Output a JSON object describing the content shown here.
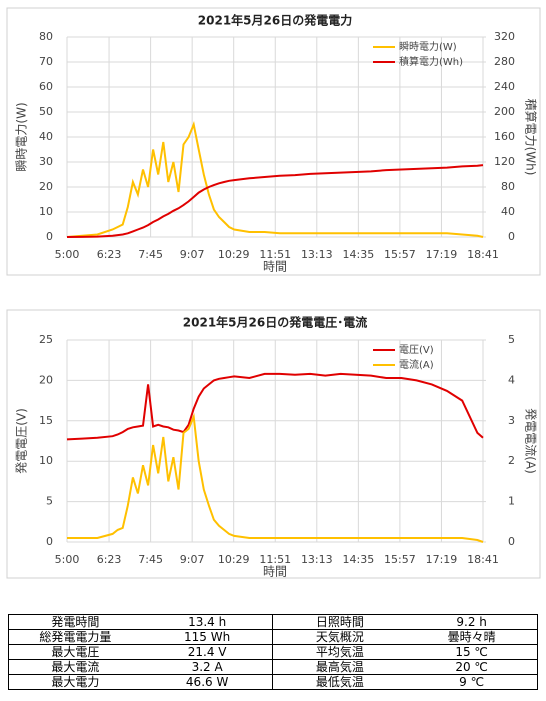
{
  "chart_data": [
    {
      "type": "line",
      "title": "2021年5月26日の発電電力",
      "xlabel": "時間",
      "ylabel": "瞬時電力(W)",
      "y2label": "積算電力(Wh)",
      "x": [
        "5:00",
        "5:30",
        "6:00",
        "6:30",
        "6:40",
        "6:50",
        "7:00",
        "7:10",
        "7:20",
        "7:30",
        "7:40",
        "7:50",
        "8:00",
        "8:10",
        "8:20",
        "8:30",
        "8:40",
        "8:50",
        "9:00",
        "9:10",
        "9:20",
        "9:30",
        "9:40",
        "9:50",
        "10:00",
        "10:10",
        "10:20",
        "10:30",
        "11:00",
        "11:30",
        "12:00",
        "12:30",
        "13:00",
        "13:30",
        "14:00",
        "14:30",
        "15:00",
        "15:30",
        "16:00",
        "16:30",
        "17:00",
        "17:30",
        "18:00",
        "18:30",
        "18:41"
      ],
      "xlim": [
        "5:00",
        "18:41"
      ],
      "xticks": [
        "5:00",
        "6:23",
        "7:45",
        "9:07",
        "10:29",
        "11:51",
        "13:13",
        "14:35",
        "15:57",
        "17:19",
        "18:41"
      ],
      "ylim": [
        0,
        80
      ],
      "yticks": [
        0,
        10,
        20,
        30,
        40,
        50,
        60,
        70,
        80
      ],
      "y2lim": [
        0,
        320
      ],
      "y2ticks": [
        0,
        40,
        80,
        120,
        160,
        200,
        240,
        280,
        320
      ],
      "grid": true,
      "legend": "top-right",
      "series": [
        {
          "name": "瞬時電力(W)",
          "color": "#ffc000",
          "values": [
            0,
            0.5,
            1,
            3,
            4,
            5,
            12,
            22,
            17,
            27,
            20,
            35,
            25,
            38,
            22,
            30,
            18,
            37,
            40,
            45,
            35,
            25,
            17,
            11,
            8,
            6,
            4,
            3,
            2,
            2,
            1.5,
            1.5,
            1.5,
            1.5,
            1.5,
            1.5,
            1.5,
            1.5,
            1.5,
            1.5,
            1.5,
            1.5,
            1,
            0.5,
            0
          ]
        },
        {
          "name": "積算電力(Wh)",
          "color": "#e00000",
          "axis": "y2",
          "values": [
            0,
            0.2,
            0.6,
            2,
            3,
            4,
            6,
            9,
            12,
            15,
            19,
            24,
            28,
            33,
            37,
            42,
            46,
            51,
            57,
            64,
            71,
            76,
            80,
            83,
            86,
            88,
            90,
            91,
            94,
            96,
            98,
            99,
            101,
            102,
            103,
            104,
            105,
            107,
            108,
            109,
            110,
            111,
            113,
            114,
            115
          ]
        }
      ]
    },
    {
      "type": "line",
      "title": "2021年5月26日の発電電圧･電流",
      "xlabel": "時間",
      "ylabel": "発電電圧(V)",
      "y2label": "発電電流(A)",
      "x": [
        "5:00",
        "5:30",
        "6:00",
        "6:30",
        "6:40",
        "6:50",
        "7:00",
        "7:10",
        "7:20",
        "7:30",
        "7:40",
        "7:50",
        "8:00",
        "8:10",
        "8:20",
        "8:30",
        "8:40",
        "8:50",
        "9:00",
        "9:10",
        "9:20",
        "9:30",
        "9:40",
        "9:50",
        "10:00",
        "10:10",
        "10:20",
        "10:30",
        "11:00",
        "11:30",
        "12:00",
        "12:30",
        "13:00",
        "13:30",
        "14:00",
        "14:30",
        "15:00",
        "15:30",
        "16:00",
        "16:30",
        "17:00",
        "17:30",
        "18:00",
        "18:30",
        "18:41"
      ],
      "xlim": [
        "5:00",
        "18:41"
      ],
      "xticks": [
        "5:00",
        "6:23",
        "7:45",
        "9:07",
        "10:29",
        "11:51",
        "13:13",
        "14:35",
        "15:57",
        "17:19",
        "18:41"
      ],
      "ylim": [
        0,
        25
      ],
      "yticks": [
        0,
        5,
        10,
        15,
        20,
        25
      ],
      "y2lim": [
        0,
        5
      ],
      "y2ticks": [
        0,
        1,
        2,
        3,
        4,
        5
      ],
      "grid": true,
      "legend": "top-right",
      "series": [
        {
          "name": "電圧(V)",
          "color": "#e00000",
          "values": [
            12.7,
            12.8,
            12.9,
            13.1,
            13.3,
            13.6,
            14,
            14.2,
            14.3,
            14.4,
            19.5,
            14.3,
            14.5,
            14.3,
            14.2,
            13.9,
            13.8,
            13.6,
            14.5,
            16.5,
            18,
            19,
            19.5,
            20,
            20.2,
            20.3,
            20.4,
            20.5,
            20.3,
            20.8,
            20.8,
            20.7,
            20.8,
            20.6,
            20.8,
            20.7,
            20.6,
            20.3,
            20.3,
            20,
            19.5,
            18.7,
            17.5,
            13.5,
            12.9
          ]
        },
        {
          "name": "電流(A)",
          "color": "#ffc000",
          "axis": "y2",
          "values": [
            0.1,
            0.1,
            0.1,
            0.2,
            0.3,
            0.35,
            0.9,
            1.6,
            1.2,
            1.9,
            1.4,
            2.4,
            1.7,
            2.6,
            1.5,
            2.1,
            1.3,
            2.7,
            2.8,
            3.1,
            2,
            1.3,
            0.9,
            0.55,
            0.4,
            0.3,
            0.2,
            0.15,
            0.1,
            0.1,
            0.1,
            0.1,
            0.1,
            0.1,
            0.1,
            0.1,
            0.1,
            0.1,
            0.1,
            0.1,
            0.1,
            0.1,
            0.1,
            0.05,
            0
          ]
        }
      ]
    }
  ],
  "table": {
    "rows": [
      [
        "発電時間",
        "13.4 h",
        "日照時間",
        "9.2 h"
      ],
      [
        "総発電電力量",
        "115 Wh",
        "天気概況",
        "曇時々晴"
      ],
      [
        "最大電圧",
        "21.4 V",
        "平均気温",
        "15 ℃"
      ],
      [
        "最大電流",
        "3.2 A",
        "最高気温",
        "20 ℃"
      ],
      [
        "最大電力",
        "46.6 W",
        "最低気温",
        "9 ℃"
      ]
    ]
  }
}
